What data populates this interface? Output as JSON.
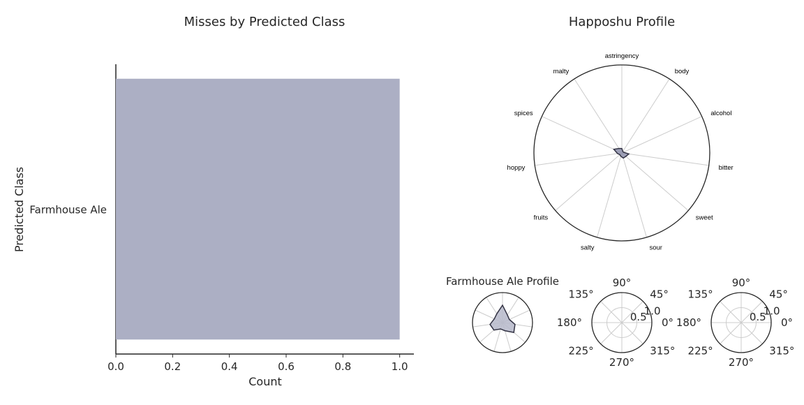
{
  "chart_data": [
    {
      "type": "bar",
      "orientation": "horizontal",
      "title": "Misses by Predicted Class",
      "xlabel": "Count",
      "ylabel": "Predicted Class",
      "categories": [
        "Farmhouse Ale"
      ],
      "values": [
        1.0
      ],
      "xlim": [
        0,
        1.05
      ],
      "xticks": [
        "0.0",
        "0.2",
        "0.4",
        "0.6",
        "0.8",
        "1.0"
      ],
      "bar_color": "#acafc4"
    },
    {
      "type": "radar",
      "title": "Happoshu Profile",
      "categories": [
        "astringency",
        "body",
        "alcohol",
        "bitter",
        "sweet",
        "sour",
        "salty",
        "fruits",
        "hoppy",
        "spices",
        "malty"
      ],
      "values": [
        0.05,
        0.02,
        0.02,
        0.08,
        0.06,
        0.06,
        0.04,
        0.03,
        0.05,
        0.1,
        0.06
      ],
      "fill_color": "#8e90ab",
      "line_color": "#333344"
    },
    {
      "type": "radar",
      "title": "Farmhouse Ale Profile",
      "categories": [
        "astringency",
        "body",
        "alcohol",
        "bitter",
        "sweet",
        "sour",
        "salty",
        "fruits",
        "hoppy",
        "spices",
        "malty"
      ],
      "values": [
        0.58,
        0.3,
        0.25,
        0.42,
        0.5,
        0.28,
        0.22,
        0.38,
        0.42,
        0.3,
        0.35
      ],
      "fill_color": "#b6b8ca",
      "line_color": "#333344"
    },
    {
      "type": "polar-empty",
      "angle_labels": [
        "0°",
        "45°",
        "90°",
        "135°",
        "180°",
        "225°",
        "270°",
        "315°"
      ],
      "radial_labels": [
        "0.5",
        "1.0"
      ]
    },
    {
      "type": "polar-empty",
      "angle_labels": [
        "0°",
        "45°",
        "90°",
        "135°",
        "180°",
        "225°",
        "270°",
        "315°"
      ],
      "radial_labels": [
        "0.5",
        "1.0"
      ]
    }
  ]
}
